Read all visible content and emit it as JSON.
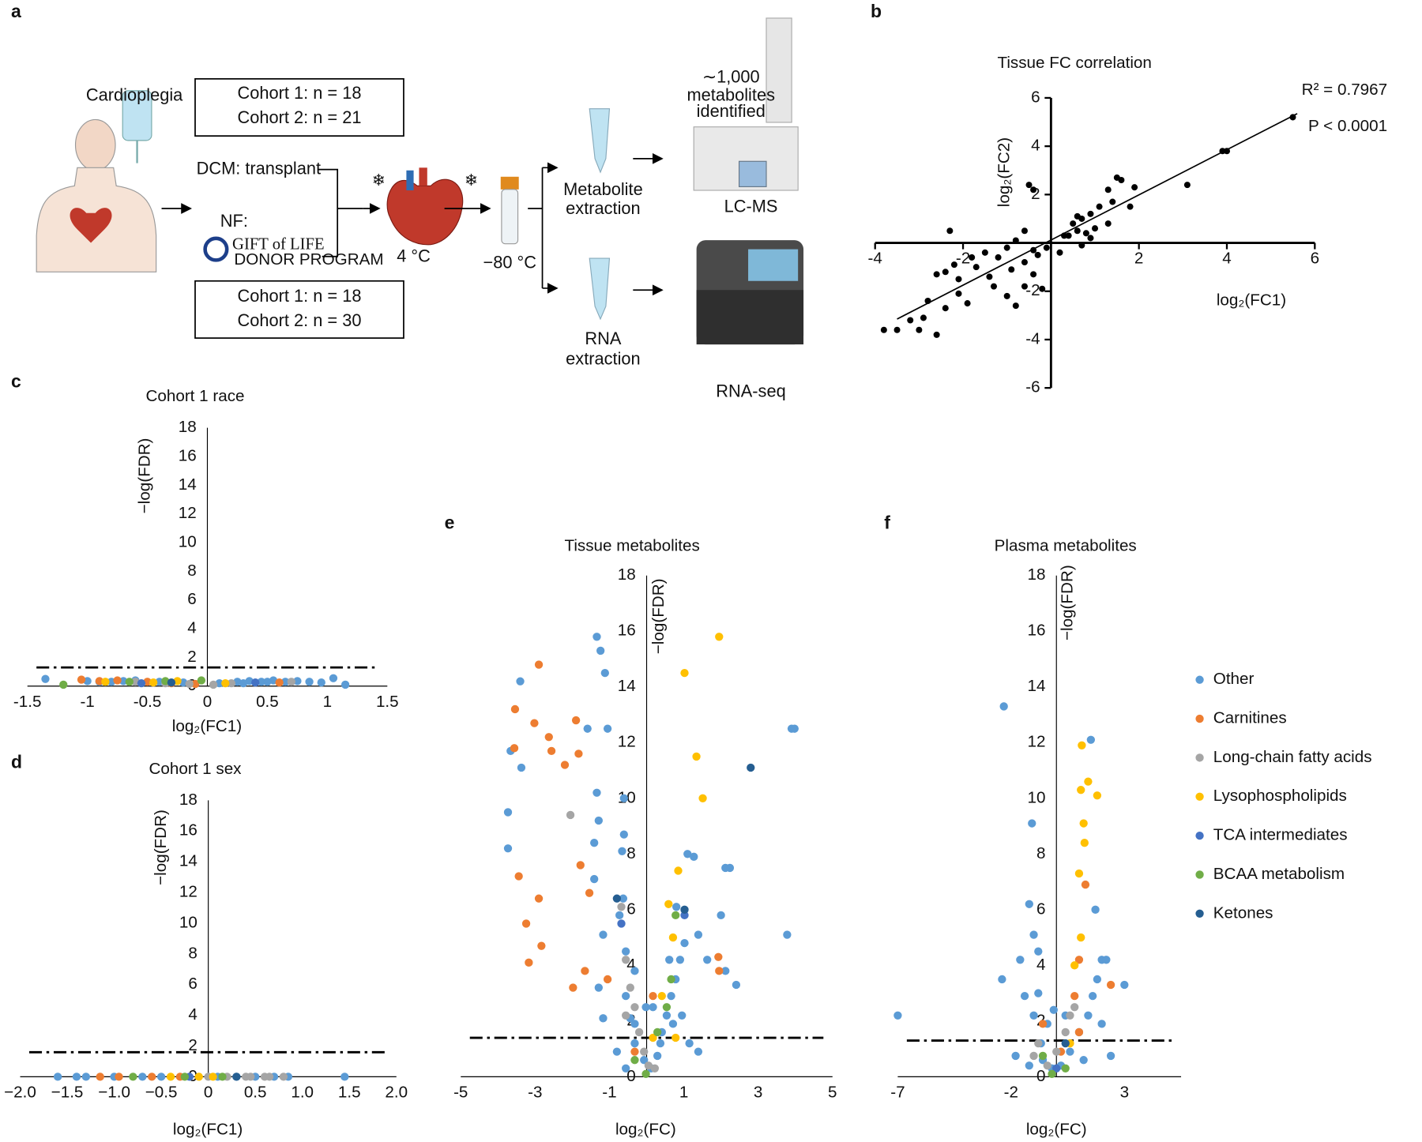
{
  "panel_labels": [
    "a",
    "b",
    "c",
    "d",
    "e",
    "f"
  ],
  "diagram": {
    "cardioplegia": "Cardioplegia",
    "cohort_top": [
      "Cohort 1: n = 18",
      "Cohort 2: n = 21"
    ],
    "dcm": "DCM: transplant",
    "nf": "NF:",
    "gift": "GIFT of LIFE",
    "donor": "DONOR PROGRAM",
    "temp_heart": "4 °C",
    "temp_freeze": "−80 °C",
    "cohort_bottom": [
      "Cohort 1: n = 18",
      "Cohort 2: n = 30"
    ],
    "metabolite_extraction": [
      "Metabolite",
      "extraction"
    ],
    "rna_extraction": [
      "RNA",
      "extraction"
    ],
    "metabolites_identified": [
      "∼1,000",
      "metabolites",
      "identified"
    ],
    "lcms": "LC-MS",
    "rnaseq": "RNA-seq"
  },
  "legend": {
    "names": [
      "Other",
      "Carnitines",
      "Long-chain fatty acids",
      "Lysophospholipids",
      "TCA intermediates",
      "BCAA metabolism",
      "Ketones"
    ],
    "colors": [
      "#5b9bd5",
      "#ed7d31",
      "#a5a5a5",
      "#ffc000",
      "#4472c4",
      "#70ad47",
      "#255e91"
    ]
  },
  "chart_data": [
    {
      "type": "scatter",
      "title": "Tissue FC correlation",
      "x_label": "log₂(FC1)",
      "y_label": "log₂(FC2)",
      "annotations": [
        "R² = 0.7967",
        "P < 0.0001"
      ],
      "xlim": [
        -4,
        6
      ],
      "xticks": [
        -4,
        -2,
        2,
        4,
        6
      ],
      "ylim": [
        -6,
        6
      ],
      "yticks": [
        -6,
        -4,
        -2,
        2,
        4,
        6
      ],
      "tick_marks": true,
      "series": [
        {
          "color": "#000000",
          "x": [
            5.5,
            3.9,
            4.0,
            3.1,
            1.5,
            1.6,
            1.9,
            1.3,
            1.4,
            1.1,
            1.8,
            0.9,
            0.6,
            0.7,
            0.5,
            0.6,
            0.8,
            0.9,
            1.0,
            1.3,
            0.4,
            0.7,
            -0.5,
            -0.4,
            -2.3,
            -0.6,
            -0.8,
            -1.0,
            -0.4,
            -0.3,
            -0.6,
            -1.2,
            -1.5,
            -1.8,
            -2.4,
            -2.1,
            -2.6,
            -1.7,
            -1.3,
            -1.0,
            -0.6,
            -0.4,
            -1.9,
            -2.4,
            -2.8,
            -2.9,
            -2.6,
            -3.2,
            -3.5,
            -3.8,
            -3.0,
            -2.1,
            -0.8,
            -0.2,
            0.3,
            -0.1,
            0.2,
            -1.4,
            -0.9,
            -2.2
          ],
          "values": [
            5.2,
            3.8,
            3.8,
            2.4,
            2.7,
            2.6,
            2.3,
            2.2,
            1.7,
            1.5,
            1.5,
            1.2,
            1.1,
            1.0,
            0.8,
            0.5,
            0.4,
            0.2,
            0.6,
            0.8,
            0.3,
            -0.1,
            2.4,
            2.2,
            0.5,
            0.5,
            0.1,
            -0.2,
            -0.3,
            -0.5,
            -0.8,
            -0.6,
            -0.4,
            -0.6,
            -1.2,
            -1.5,
            -1.3,
            -1.0,
            -1.8,
            -2.2,
            -1.8,
            -1.3,
            -2.5,
            -2.7,
            -2.4,
            -3.1,
            -3.8,
            -3.2,
            -3.6,
            -3.6,
            -3.6,
            -2.1,
            -2.6,
            -1.9,
            0.3,
            -0.2,
            -0.4,
            -1.4,
            -1.1,
            -0.9
          ]
        }
      ],
      "fit": {
        "x": [
          -3.5,
          5.6
        ],
        "values": [
          -3.15,
          5.35
        ]
      }
    },
    {
      "type": "volcano",
      "title": "Cohort 1 race",
      "x_label": "log₂(FC1)",
      "y_label": "−log(FDR)",
      "xlim": [
        -1.5,
        1.5
      ],
      "xticks": [
        -1.5,
        -1,
        -0.5,
        0,
        0.5,
        1,
        1.5
      ],
      "ylim": [
        0,
        18
      ],
      "yticks": [
        0,
        2,
        4,
        6,
        8,
        10,
        12,
        14,
        16,
        18
      ],
      "threshold": 1.3,
      "series": [
        {
          "group": 0,
          "x": [
            -1.35,
            -1.0,
            -0.8,
            -0.6,
            -0.4,
            -0.2,
            0.1,
            0.25,
            0.35,
            0.45,
            0.55,
            0.65,
            0.75,
            0.85,
            0.95,
            1.05,
            1.15,
            -0.9,
            -0.7,
            0.3,
            0.5
          ],
          "values": [
            0.5,
            0.35,
            0.3,
            0.4,
            0.3,
            0.25,
            0.2,
            0.3,
            0.35,
            0.3,
            0.4,
            0.3,
            0.35,
            0.3,
            0.25,
            0.55,
            0.1,
            0.3,
            0.35,
            0.2,
            0.3
          ]
        },
        {
          "group": 1,
          "x": [
            -1.05,
            -0.9,
            -0.75,
            -0.5,
            -0.3,
            -0.1,
            0.6
          ],
          "values": [
            0.45,
            0.35,
            0.4,
            0.3,
            0.2,
            0.15,
            0.25
          ]
        },
        {
          "group": 2,
          "x": [
            -0.6,
            -0.35,
            -0.15,
            0.05,
            0.2,
            0.7
          ],
          "values": [
            0.3,
            0.2,
            0.15,
            0.1,
            0.2,
            0.3
          ]
        },
        {
          "group": 3,
          "x": [
            -0.85,
            -0.45,
            -0.25,
            0.15
          ],
          "values": [
            0.3,
            0.25,
            0.35,
            0.2
          ]
        },
        {
          "group": 4,
          "x": [
            -0.55,
            0.4
          ],
          "values": [
            0.2,
            0.25
          ]
        },
        {
          "group": 5,
          "x": [
            -1.2,
            -0.65,
            -0.35,
            -0.05
          ],
          "values": [
            0.1,
            0.3,
            0.35,
            0.4
          ]
        },
        {
          "group": 6,
          "x": [
            -0.3
          ],
          "values": [
            0.25
          ]
        }
      ]
    },
    {
      "type": "volcano",
      "title": "Cohort 1 sex",
      "x_label": "log₂(FC1)",
      "y_label": "−log(FDR)",
      "xlim": [
        -2,
        2
      ],
      "xticks": [
        {
          "value": -2,
          "label": "−2.0"
        },
        {
          "value": -1.5,
          "label": "−1.5"
        },
        {
          "value": -1,
          "label": "−1.0"
        },
        {
          "value": -0.5,
          "label": "−0.5"
        },
        0,
        0.5,
        {
          "value": 1,
          "label": "1.0"
        },
        1.5,
        {
          "value": 2,
          "label": "2.0"
        }
      ],
      "ylim": [
        0,
        18
      ],
      "yticks": [
        0,
        2,
        4,
        6,
        8,
        10,
        12,
        14,
        16,
        18
      ],
      "threshold": 1.6,
      "series": [
        {
          "group": 0,
          "x": [
            -1.6,
            -1.4,
            -1.3,
            -1.0,
            -0.7,
            -0.5,
            0.1,
            0.3,
            0.5,
            0.7,
            0.85,
            1.45
          ],
          "values": [
            0,
            0,
            0,
            0,
            0,
            0,
            0,
            0,
            0,
            0,
            0,
            0
          ]
        },
        {
          "group": 1,
          "x": [
            -1.15,
            -0.95,
            -0.6,
            -0.3
          ],
          "values": [
            0,
            0,
            0,
            0
          ]
        },
        {
          "group": 2,
          "x": [
            0.0,
            0.2,
            0.4,
            0.6,
            0.8,
            0.45,
            0.65
          ],
          "values": [
            0,
            0,
            0,
            0,
            0,
            0,
            0
          ]
        },
        {
          "group": 3,
          "x": [
            -0.4,
            -0.1,
            0.05
          ],
          "values": [
            0,
            0,
            0
          ]
        },
        {
          "group": 4,
          "x": [
            -0.2
          ],
          "values": [
            0
          ]
        },
        {
          "group": 5,
          "x": [
            -0.8,
            -0.25,
            0.15
          ],
          "values": [
            0,
            0,
            0
          ]
        },
        {
          "group": 6,
          "x": [
            0.3
          ],
          "values": [
            0
          ]
        }
      ]
    },
    {
      "type": "volcano",
      "title": "Tissue metabolites",
      "x_label": "log₂(FC)",
      "y_label": "−log(FDR)",
      "xlim": [
        -5,
        5
      ],
      "xticks": [
        -5,
        -3,
        -1,
        1,
        3,
        5
      ],
      "ylim": [
        0,
        18
      ],
      "yticks": [
        0,
        2,
        4,
        6,
        8,
        10,
        12,
        14,
        16,
        18
      ],
      "threshold": 1.4,
      "series": [
        {
          "group": 0,
          "x": [
            -1.34,
            -1.24,
            -1.12,
            -1.59,
            -1.05,
            -3.4,
            -3.66,
            -3.37,
            -3.73,
            -3.73,
            -1.34,
            -1.29,
            -0.61,
            -0.61,
            -1.41,
            -0.66,
            -1.41,
            -0.63,
            -0.73,
            -1.17,
            -0.56,
            -0.32,
            -1.29,
            -0.56,
            -0.44,
            -0.32,
            -0.07,
            0.12,
            0.29,
            0.41,
            0.54,
            0.66,
            0.78,
            0.9,
            1.02,
            1.1,
            1.27,
            1.39,
            1.63,
            2.12,
            2.24,
            2.12,
            2.41,
            2.0,
            3.78,
            3.9,
            3.98,
            0.17,
            0.37,
            1.15,
            1.39,
            -0.8,
            -1.17,
            -0.56,
            -0.32,
            0.71,
            0.95,
            0.61,
            0.8,
            -0.02
          ],
          "values": [
            15.8,
            15.3,
            14.5,
            12.5,
            12.5,
            14.2,
            11.7,
            11.1,
            9.5,
            8.2,
            10.2,
            9.2,
            10.0,
            8.7,
            8.4,
            8.1,
            7.1,
            6.4,
            5.8,
            5.1,
            4.5,
            3.8,
            3.2,
            2.9,
            2.1,
            1.2,
            0.6,
            0.3,
            0.75,
            1.6,
            2.2,
            2.9,
            3.5,
            4.2,
            4.8,
            8.0,
            7.9,
            5.1,
            4.2,
            3.8,
            7.5,
            7.5,
            3.3,
            5.8,
            5.1,
            12.5,
            12.5,
            2.5,
            1.2,
            1.2,
            0.9,
            0.9,
            2.1,
            0.3,
            1.9,
            1.9,
            2.2,
            4.2,
            6.1,
            2.5
          ]
        },
        {
          "group": 1,
          "x": [
            -2.9,
            -3.54,
            -3.02,
            -2.63,
            -1.9,
            -2.2,
            -1.83,
            -2.56,
            -3.56,
            -3.44,
            -2.9,
            -3.24,
            -2.83,
            -3.17,
            -1.98,
            -1.66,
            -1.78,
            -1.54,
            -1.05,
            1.93,
            1.95,
            0.17,
            -0.32
          ],
          "values": [
            14.8,
            13.2,
            12.7,
            12.2,
            12.8,
            11.2,
            11.6,
            11.7,
            11.8,
            7.2,
            6.4,
            5.5,
            4.7,
            4.1,
            3.2,
            3.8,
            7.6,
            6.6,
            3.5,
            4.3,
            3.8,
            2.9,
            0.9
          ]
        },
        {
          "group": 2,
          "x": [
            -2.05,
            -0.68,
            -0.56,
            -0.44,
            -0.32,
            -0.2,
            -0.07,
            0.05,
            0.22,
            -0.56
          ],
          "values": [
            9.4,
            6.1,
            4.2,
            3.2,
            2.5,
            1.6,
            0.9,
            0.4,
            0.3,
            2.2
          ]
        },
        {
          "group": 3,
          "x": [
            1.95,
            1.02,
            1.34,
            1.51,
            0.85,
            0.59,
            0.71,
            0.41,
            0.17,
            0.78
          ],
          "values": [
            15.8,
            14.5,
            11.5,
            10.0,
            7.4,
            6.2,
            5.0,
            2.9,
            1.4,
            1.4
          ]
        },
        {
          "group": 4,
          "x": [
            -0.68,
            1.02
          ],
          "values": [
            5.5,
            5.8
          ]
        },
        {
          "group": 5,
          "x": [
            0.78,
            0.66,
            0.54,
            0.29,
            -0.02,
            -0.32
          ],
          "values": [
            5.8,
            3.5,
            2.5,
            1.6,
            0.1,
            0.6
          ]
        },
        {
          "group": 6,
          "x": [
            2.8,
            -0.8,
            1.02
          ],
          "values": [
            11.1,
            6.4,
            6.0
          ]
        }
      ]
    },
    {
      "type": "volcano",
      "title": "Plasma metabolites",
      "x_label": "log₂(FC)",
      "y_label": "−log(FDR)",
      "xlim": [
        -7,
        5.5
      ],
      "xticks": [
        -7,
        -2,
        3
      ],
      "ylim": [
        0,
        18
      ],
      "yticks": [
        0,
        2,
        4,
        6,
        8,
        10,
        12,
        14,
        16,
        18
      ],
      "threshold": 1.3,
      "legend": true,
      "series": [
        {
          "group": 0,
          "x": [
            -2.32,
            1.52,
            -7.0,
            -1.2,
            -1.0,
            -1.08,
            -0.8,
            -1.6,
            -2.4,
            -1.4,
            -1.0,
            -0.68,
            -0.6,
            -1.8,
            -1.2,
            -0.2,
            0.2,
            0.6,
            1.0,
            1.4,
            1.6,
            1.8,
            2.0,
            1.72,
            3.0,
            2.2,
            2.0,
            2.4,
            1.2,
            -0.8,
            -0.4,
            -0.12,
            0.4
          ],
          "values": [
            13.3,
            12.1,
            2.2,
            6.2,
            5.1,
            9.1,
            4.5,
            4.2,
            3.5,
            2.9,
            2.2,
            1.2,
            0.6,
            0.75,
            0.4,
            0.3,
            0.4,
            0.9,
            1.6,
            2.2,
            2.9,
            3.5,
            4.2,
            6.0,
            3.3,
            4.2,
            1.9,
            0.75,
            0.6,
            3.0,
            1.9,
            2.4,
            2.2
          ]
        },
        {
          "group": 1,
          "x": [
            1.28,
            2.4,
            1.0,
            0.8,
            1.0,
            0.2,
            -0.6
          ],
          "values": [
            6.9,
            3.3,
            4.2,
            2.9,
            1.6,
            0.9,
            1.9
          ]
        },
        {
          "group": 2,
          "x": [
            0.8,
            0.6,
            0.4,
            0,
            -0.4,
            -0.8,
            -1.0
          ],
          "values": [
            2.5,
            2.2,
            1.6,
            0.9,
            0.4,
            1.2,
            0.75
          ]
        },
        {
          "group": 3,
          "x": [
            1.12,
            1.4,
            1.08,
            1.8,
            1.2,
            1.24,
            1.0,
            1.08,
            0.8,
            0.6
          ],
          "values": [
            11.9,
            10.6,
            10.3,
            10.1,
            9.1,
            8.4,
            7.3,
            5.0,
            4.0,
            1.2
          ]
        },
        {
          "group": 4,
          "x": [
            0
          ],
          "values": [
            0.3
          ]
        },
        {
          "group": 5,
          "x": [
            -0.6,
            0.4,
            -0.2
          ],
          "values": [
            0.75,
            0.3,
            0.1
          ]
        },
        {
          "group": 6,
          "x": [
            0.4
          ],
          "values": [
            1.2
          ]
        }
      ]
    }
  ]
}
